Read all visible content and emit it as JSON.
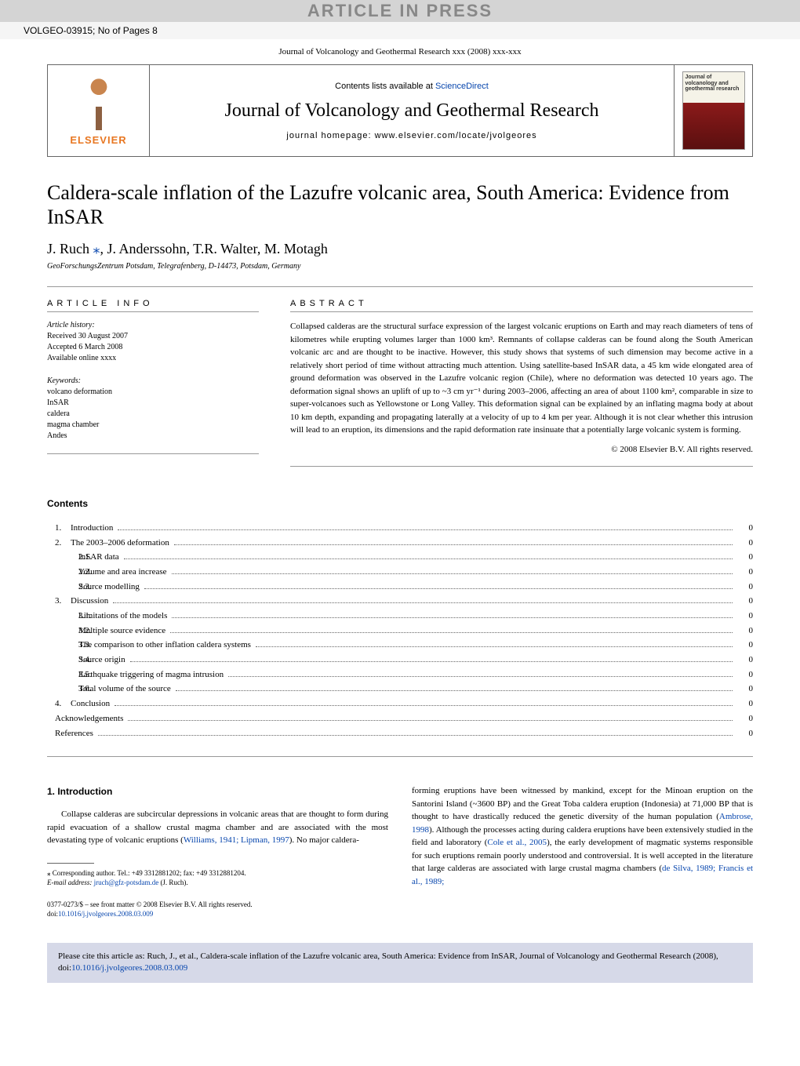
{
  "top_banner": "ARTICLE IN PRESS",
  "article_id": "VOLGEO-03915; No of Pages 8",
  "journal_ref": "Journal of Volcanology and Geothermal Research xxx (2008) xxx-xxx",
  "contents_prefix": "Contents lists available at ",
  "contents_link": "ScienceDirect",
  "journal_name": "Journal of Volcanology and Geothermal Research",
  "homepage_prefix": "journal homepage: ",
  "homepage_url": "www.elsevier.com/locate/jvolgeores",
  "elsevier": "ELSEVIER",
  "cover_label": "Journal of volcanology and geothermal research",
  "title": "Caldera-scale inflation of the Lazufre volcanic area, South America: Evidence from InSAR",
  "authors_pre": "J. Ruch ",
  "corr_mark": "⁎",
  "authors_post": ", J. Anderssohn, T.R. Walter, M. Motagh",
  "affiliation": "GeoForschungsZentrum Potsdam, Telegrafenberg, D-14473, Potsdam, Germany",
  "info_head": "ARTICLE INFO",
  "abstract_head": "ABSTRACT",
  "history_label": "Article history:",
  "history_received": "Received 30 August 2007",
  "history_accepted": "Accepted 6 March 2008",
  "history_online": "Available online xxxx",
  "keywords_label": "Keywords:",
  "keywords": [
    "volcano deformation",
    "InSAR",
    "caldera",
    "magma chamber",
    "Andes"
  ],
  "abstract": "Collapsed calderas are the structural surface expression of the largest volcanic eruptions on Earth and may reach diameters of tens of kilometres while erupting volumes larger than 1000 km³. Remnants of collapse calderas can be found along the South American volcanic arc and are thought to be inactive. However, this study shows that systems of such dimension may become active in a relatively short period of time without attracting much attention. Using satellite-based InSAR data, a 45 km wide elongated area of ground deformation was observed in the Lazufre volcanic region (Chile), where no deformation was detected 10 years ago. The deformation signal shows an uplift of up to ~3 cm yr⁻¹ during 2003–2006, affecting an area of about 1100 km², comparable in size to super-volcanoes such as Yellowstone or Long Valley. This deformation signal can be explained by an inflating magma body at about 10 km depth, expanding and propagating laterally at a velocity of up to 4 km per year. Although it is not clear whether this intrusion will lead to an eruption, its dimensions and the rapid deformation rate insinuate that a potentially large volcanic system is forming.",
  "copyright": "© 2008 Elsevier B.V. All rights reserved.",
  "contents_heading": "Contents",
  "toc": [
    {
      "num": "1.",
      "label": "Introduction",
      "page": "0",
      "level": 1
    },
    {
      "num": "2.",
      "label": "The 2003–2006 deformation",
      "page": "0",
      "level": 1
    },
    {
      "num": "2.1.",
      "label": "InSAR data",
      "page": "0",
      "level": 2
    },
    {
      "num": "2.2.",
      "label": "Volume and area increase",
      "page": "0",
      "level": 2
    },
    {
      "num": "2.3.",
      "label": "Source modelling",
      "page": "0",
      "level": 2
    },
    {
      "num": "3.",
      "label": "Discussion",
      "page": "0",
      "level": 1
    },
    {
      "num": "3.1.",
      "label": "Limitations of the models",
      "page": "0",
      "level": 2
    },
    {
      "num": "3.2.",
      "label": "Multiple source evidence",
      "page": "0",
      "level": 2
    },
    {
      "num": "3.3.",
      "label": "The comparison to other inflation caldera systems",
      "page": "0",
      "level": 2
    },
    {
      "num": "3.4.",
      "label": "Source origin",
      "page": "0",
      "level": 2
    },
    {
      "num": "3.5.",
      "label": "Earthquake triggering of magma intrusion",
      "page": "0",
      "level": 2
    },
    {
      "num": "3.6.",
      "label": "Total volume of the source",
      "page": "0",
      "level": 2
    },
    {
      "num": "4.",
      "label": "Conclusion",
      "page": "0",
      "level": 1
    },
    {
      "num": "",
      "label": "Acknowledgements",
      "page": "0",
      "level": 0
    },
    {
      "num": "",
      "label": "References",
      "page": "0",
      "level": 0
    }
  ],
  "intro_heading": "1. Introduction",
  "intro_left_pre": "Collapse calderas are subcircular depressions in volcanic areas that are thought to form during rapid evacuation of a shallow crustal magma chamber and are associated with the most devastating type of volcanic eruptions (",
  "intro_left_cite": "Williams, 1941; Lipman, 1997",
  "intro_left_post": "). No major caldera-",
  "intro_right_pre": "forming eruptions have been witnessed by mankind, except for the Minoan eruption on the Santorini Island (~3600 BP) and the Great Toba caldera eruption (Indonesia) at 71,000 BP that is thought to have drastically reduced the genetic diversity of the human population (",
  "intro_right_cite1": "Ambrose, 1998",
  "intro_right_mid1": "). Although the processes acting during caldera eruptions have been extensively studied in the field and laboratory (",
  "intro_right_cite2": "Cole et al., 2005",
  "intro_right_mid2": "), the early development of magmatic systems responsible for such eruptions remain poorly understood and controversial. It is well accepted in the literature that large calderas are associated with large crustal magma chambers (",
  "intro_right_cite3": "de Silva, 1989; Francis et al., 1989;",
  "corr_footnote_pre": "⁎ Corresponding author. Tel.: +49 3312881202; fax: +49 3312881204.",
  "email_label": "E-mail address: ",
  "email": "jruch@gfz-potsdam.de",
  "email_suffix": " (J. Ruch).",
  "imprint_line1": "0377-0273/$ – see front matter © 2008 Elsevier B.V. All rights reserved.",
  "doi_label": "doi:",
  "doi": "10.1016/j.jvolgeores.2008.03.009",
  "citation_pre": "Please cite this article as: Ruch, J., et al., Caldera-scale inflation of the Lazufre volcanic area, South America: Evidence from InSAR, Journal of Volcanology and Geothermal Research (2008), doi:",
  "citation_doi": "10.1016/j.jvolgeores.2008.03.009",
  "colors": {
    "banner_bg": "#d4d4d4",
    "banner_text": "#888888",
    "link": "#0645ad",
    "elsevier_orange": "#e87722",
    "citation_bg": "#d6d9e8"
  }
}
